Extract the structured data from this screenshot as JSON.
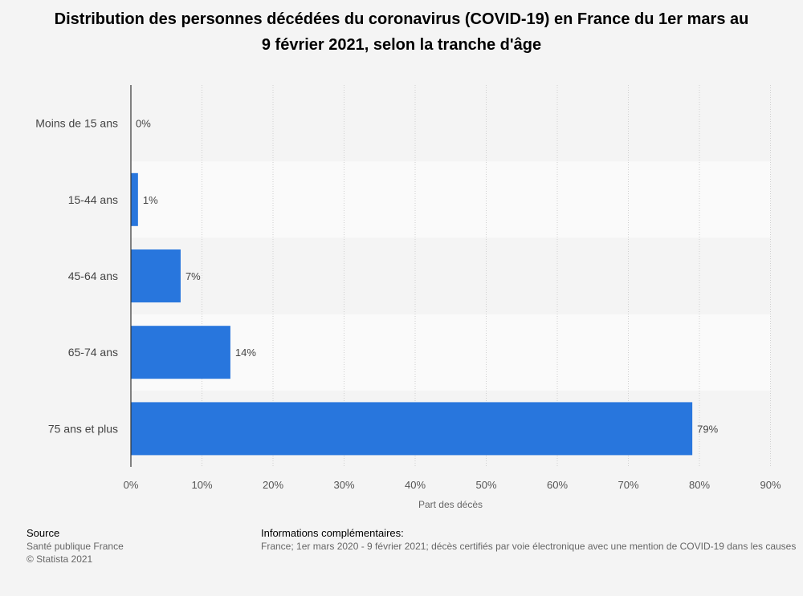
{
  "chart_data": {
    "type": "bar",
    "orientation": "horizontal",
    "title": "Distribution des personnes décédées du coronavirus (COVID-19) en France du 1er mars au 9 février 2021, selon la tranche d'âge",
    "categories": [
      "Moins de 15 ans",
      "15-44 ans",
      "45-64 ans",
      "65-74 ans",
      "75 ans et plus"
    ],
    "values": [
      0,
      1,
      7,
      14,
      79
    ],
    "value_labels": [
      "0%",
      "1%",
      "7%",
      "14%",
      "79%"
    ],
    "xlabel": "Part des décès",
    "ylabel": "",
    "xlim": [
      0,
      90
    ],
    "xticks": [
      0,
      10,
      20,
      30,
      40,
      50,
      60,
      70,
      80,
      90
    ],
    "xtick_labels": [
      "0%",
      "10%",
      "20%",
      "30%",
      "40%",
      "50%",
      "60%",
      "70%",
      "80%",
      "90%"
    ],
    "grid": "vertical dotted",
    "bar_color": "#2876dd"
  },
  "footer": {
    "source_heading": "Source",
    "source_lines": [
      "Santé publique France",
      "© Statista 2021"
    ],
    "info_heading": "Informations complémentaires:",
    "info_text": "France; 1er mars 2020 - 9 février 2021; décès certifiés par voie électronique avec une mention de COVID-19 dans les causes"
  }
}
